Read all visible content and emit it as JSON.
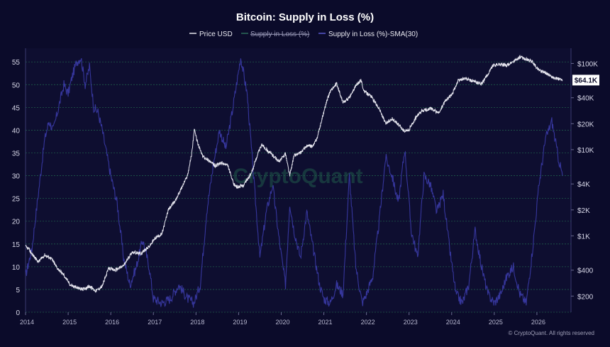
{
  "chart_data": {
    "type": "line",
    "title": "Bitcoin: Supply in Loss (%)",
    "legend": {
      "placement": "top-center",
      "items": [
        {
          "name": "Price USD",
          "color": "#e8e8f0",
          "hidden": false
        },
        {
          "name": "Supply in Loss (%)",
          "color": "#4dd08c",
          "hidden": true
        },
        {
          "name": "Supply in Loss (%)-SMA(30)",
          "color": "#3a3a9a",
          "hidden": false
        }
      ]
    },
    "x_ticks": [
      "2014",
      "2015",
      "2016",
      "2017",
      "2018",
      "2019",
      "2020",
      "2021",
      "2022",
      "2023",
      "2024",
      "2025",
      "2026"
    ],
    "x_range": [
      2014.0,
      2026.8
    ],
    "y_left": {
      "range": [
        0,
        58
      ],
      "ticks": [
        0,
        5,
        10,
        15,
        20,
        25,
        30,
        35,
        40,
        45,
        50,
        55
      ],
      "tick_labels": [
        "0",
        "5",
        "10",
        "15",
        "20",
        "25",
        "30",
        "35",
        "40",
        "45",
        "50",
        "55"
      ]
    },
    "y_right": {
      "scale": "log",
      "range": [
        130,
        150000
      ],
      "ticks": [
        200,
        400,
        1000,
        2000,
        4000,
        10000,
        20000,
        40000,
        100000
      ],
      "tick_labels": [
        "$200",
        "$400",
        "$1K",
        "$2K",
        "$4K",
        "$10K",
        "$20K",
        "$40K",
        "$100K"
      ]
    },
    "current_price_label": "$64.1K",
    "current_price": 64100,
    "grid": true,
    "series": [
      {
        "name": "Price USD",
        "axis": "right",
        "x": [
          2014.0,
          2014.08,
          2014.17,
          2014.3,
          2014.45,
          2014.6,
          2014.75,
          2014.9,
          2015.05,
          2015.2,
          2015.35,
          2015.5,
          2015.65,
          2015.8,
          2015.95,
          2016.1,
          2016.3,
          2016.5,
          2016.7,
          2016.9,
          2017.05,
          2017.2,
          2017.35,
          2017.5,
          2017.65,
          2017.8,
          2017.9,
          2017.96,
          2018.05,
          2018.15,
          2018.3,
          2018.45,
          2018.6,
          2018.75,
          2018.88,
          2018.96,
          2019.1,
          2019.3,
          2019.45,
          2019.55,
          2019.7,
          2019.85,
          2019.95,
          2020.1,
          2020.2,
          2020.3,
          2020.45,
          2020.6,
          2020.75,
          2020.85,
          2020.95,
          2021.05,
          2021.15,
          2021.3,
          2021.45,
          2021.6,
          2021.75,
          2021.87,
          2021.95,
          2022.1,
          2022.3,
          2022.45,
          2022.6,
          2022.75,
          2022.88,
          2023.0,
          2023.15,
          2023.3,
          2023.5,
          2023.7,
          2023.85,
          2024.0,
          2024.15,
          2024.3,
          2024.5,
          2024.7,
          2024.85,
          2024.96,
          2025.1,
          2025.3,
          2025.45,
          2025.6,
          2025.75,
          2025.9,
          2026.0,
          2026.1,
          2026.2,
          2026.35,
          2026.5,
          2026.6
        ],
        "y": [
          750,
          700,
          600,
          500,
          600,
          550,
          420,
          350,
          270,
          250,
          240,
          260,
          230,
          260,
          420,
          400,
          450,
          650,
          620,
          750,
          950,
          1050,
          2000,
          2500,
          3500,
          5000,
          9000,
          17000,
          11500,
          8500,
          7500,
          6500,
          7000,
          6500,
          4000,
          3700,
          3800,
          5300,
          9000,
          11500,
          9500,
          8200,
          7200,
          9000,
          5000,
          8500,
          9200,
          11000,
          11000,
          14000,
          22000,
          34000,
          48000,
          58000,
          35000,
          40000,
          55000,
          64000,
          47000,
          42000,
          30000,
          20000,
          23000,
          19500,
          16500,
          17000,
          23000,
          28000,
          30000,
          26500,
          37000,
          43000,
          63000,
          67000,
          62000,
          58000,
          75000,
          94000,
          98000,
          95000,
          105000,
          118000,
          112000,
          104000,
          88000,
          82000,
          78000,
          70000,
          66000,
          64100
        ]
      },
      {
        "name": "Supply in Loss (%)-SMA(30)",
        "axis": "left",
        "x": [
          2014.0,
          2014.15,
          2014.25,
          2014.35,
          2014.45,
          2014.55,
          2014.65,
          2014.8,
          2014.9,
          2015.0,
          2015.1,
          2015.2,
          2015.3,
          2015.4,
          2015.5,
          2015.6,
          2015.7,
          2015.8,
          2015.9,
          2016.0,
          2016.15,
          2016.3,
          2016.45,
          2016.6,
          2016.75,
          2016.9,
          2017.0,
          2017.2,
          2017.4,
          2017.6,
          2017.8,
          2017.95,
          2018.1,
          2018.25,
          2018.4,
          2018.55,
          2018.7,
          2018.85,
          2018.95,
          2019.05,
          2019.2,
          2019.35,
          2019.5,
          2019.65,
          2019.8,
          2019.95,
          2020.1,
          2020.2,
          2020.3,
          2020.45,
          2020.6,
          2020.75,
          2020.9,
          2021.0,
          2021.15,
          2021.3,
          2021.45,
          2021.6,
          2021.75,
          2021.9,
          2022.0,
          2022.15,
          2022.3,
          2022.45,
          2022.6,
          2022.75,
          2022.9,
          2023.05,
          2023.2,
          2023.35,
          2023.5,
          2023.65,
          2023.8,
          2023.95,
          2024.1,
          2024.25,
          2024.4,
          2024.55,
          2024.7,
          2024.85,
          2025.0,
          2025.15,
          2025.3,
          2025.45,
          2025.6,
          2025.75,
          2025.9,
          2026.05,
          2026.2,
          2026.35,
          2026.5,
          2026.6
        ],
        "y": [
          8,
          14,
          22,
          30,
          38,
          42,
          40,
          46,
          50,
          48,
          52,
          55,
          56,
          50,
          54,
          45,
          44,
          40,
          35,
          30,
          24,
          12,
          6,
          10,
          16,
          10,
          3,
          2,
          3,
          6,
          3,
          2,
          6,
          22,
          32,
          40,
          36,
          44,
          50,
          56,
          48,
          30,
          12,
          22,
          28,
          16,
          6,
          24,
          18,
          12,
          22,
          14,
          6,
          3,
          2,
          6,
          4,
          30,
          10,
          2,
          4,
          8,
          20,
          34,
          30,
          24,
          36,
          18,
          12,
          30,
          28,
          22,
          26,
          14,
          4,
          2,
          6,
          18,
          10,
          4,
          2,
          4,
          8,
          10,
          4,
          2,
          14,
          28,
          38,
          42,
          34,
          30
        ]
      }
    ]
  },
  "watermark": "CryptoQuant",
  "copyright": "© CryptoQuant. All rights reserved"
}
